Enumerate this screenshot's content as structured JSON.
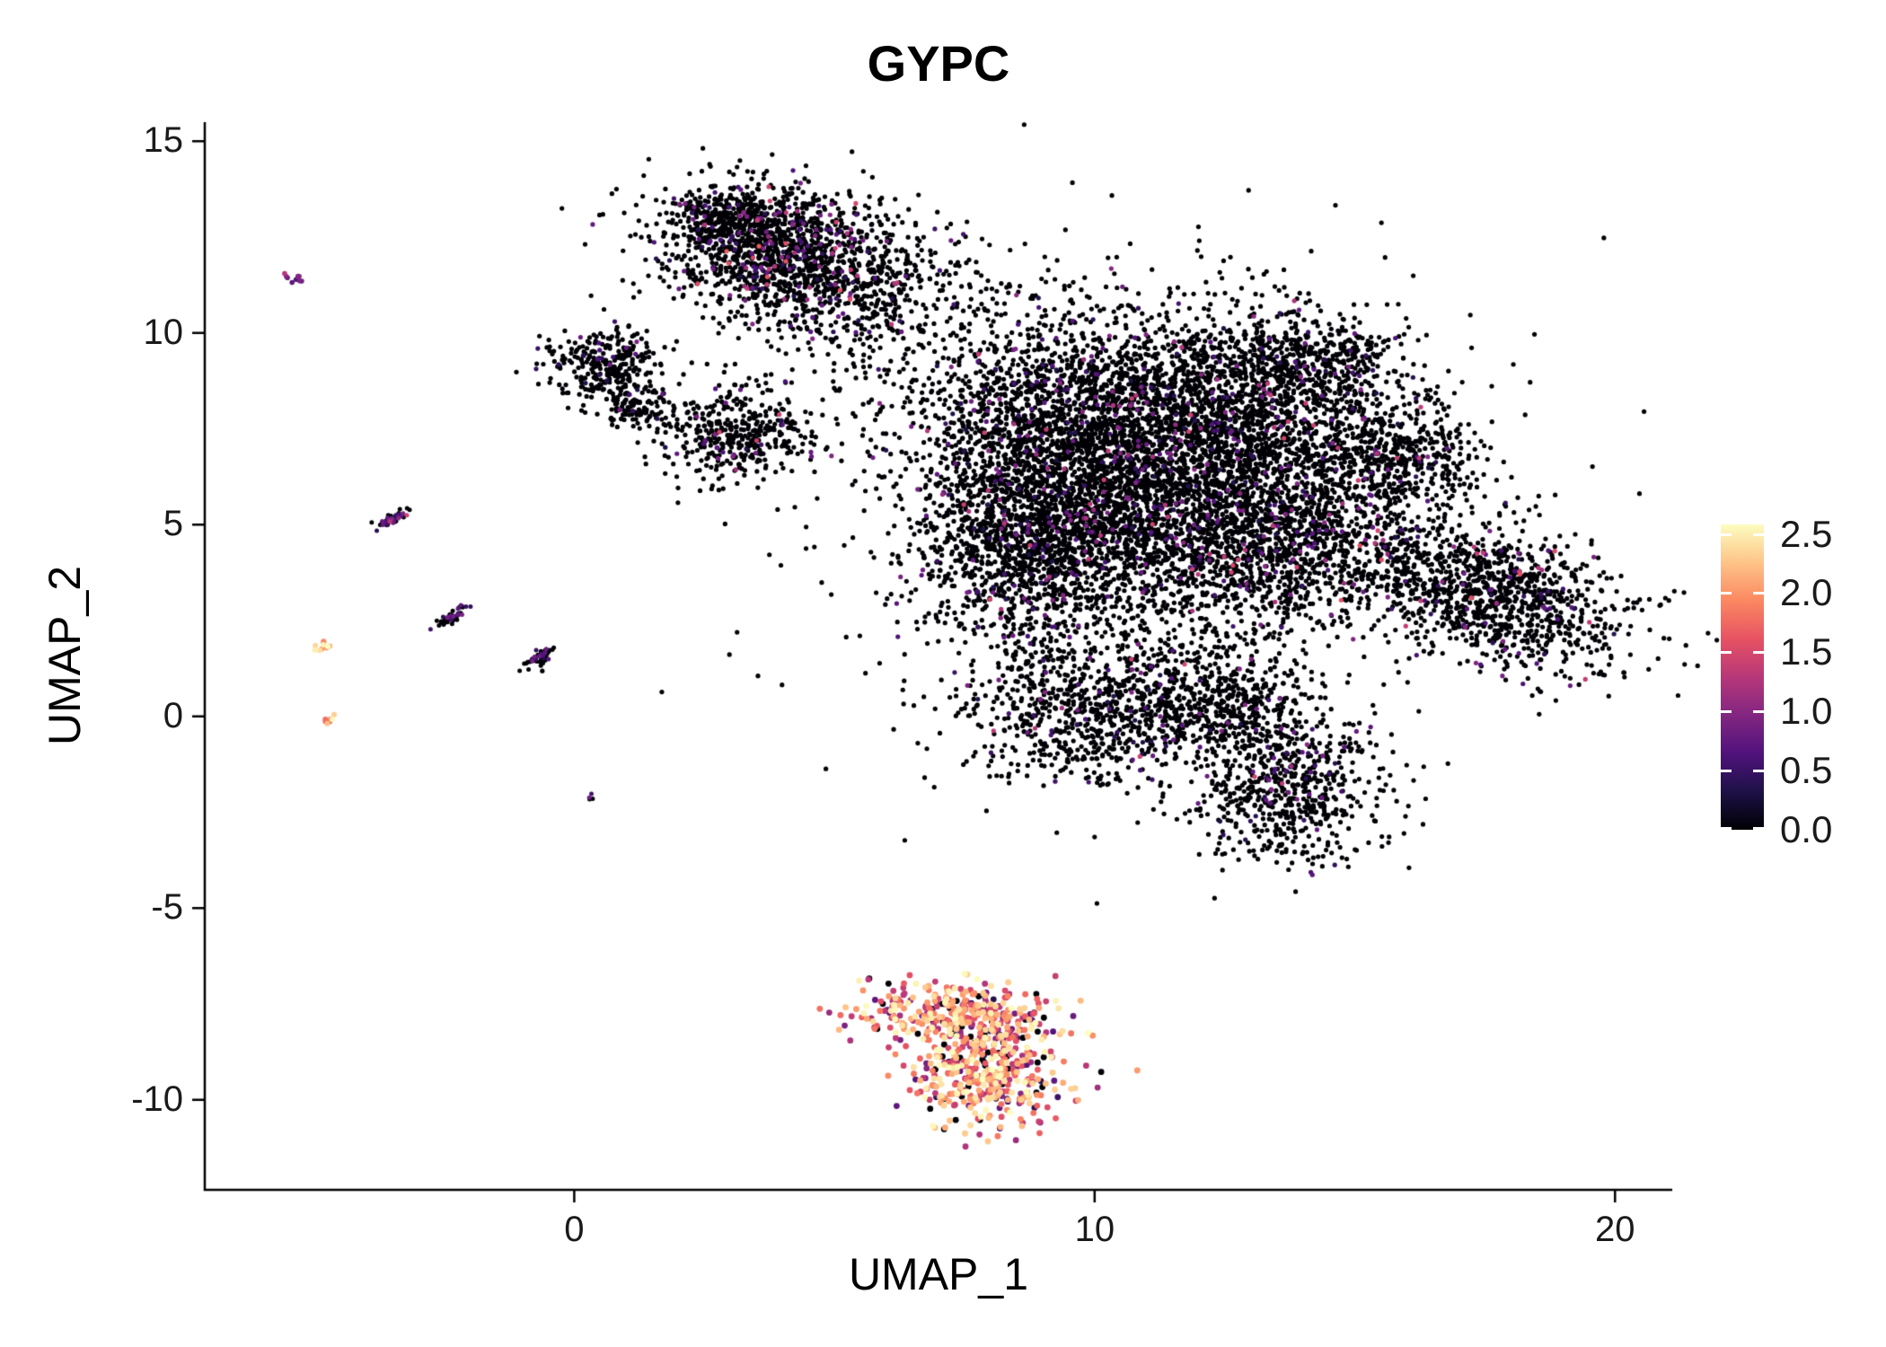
{
  "chart_data": {
    "type": "scatter",
    "title": "GYPC",
    "xlabel": "UMAP_1",
    "ylabel": "UMAP_2",
    "x_ticks": [
      0,
      10,
      20
    ],
    "y_ticks": [
      15,
      10,
      5,
      0,
      -5,
      -10
    ],
    "xlim": [
      -7.1,
      21.1
    ],
    "ylim": [
      -12.35,
      15.5
    ],
    "grid": false,
    "background": "#ffffff",
    "axis_color": "#000000",
    "legend": {
      "position": "right",
      "ticks": [
        "2.5",
        "2.0",
        "1.5",
        "1.0",
        "0.5",
        "0.0"
      ],
      "tick_values": [
        2.5,
        2.0,
        1.5,
        1.0,
        0.5,
        0.0
      ],
      "min": 0,
      "max": 2.58,
      "colormap": "magma",
      "colormap_stops": [
        {
          "t": 0.0,
          "color": "#000004"
        },
        {
          "t": 0.125,
          "color": "#1d1147"
        },
        {
          "t": 0.25,
          "color": "#51127c"
        },
        {
          "t": 0.375,
          "color": "#822681"
        },
        {
          "t": 0.5,
          "color": "#b73779"
        },
        {
          "t": 0.625,
          "color": "#e75263"
        },
        {
          "t": 0.75,
          "color": "#fb8861"
        },
        {
          "t": 0.875,
          "color": "#fec488"
        },
        {
          "t": 1.0,
          "color": "#fcfdbf"
        }
      ]
    },
    "point_radius_px": 2.6,
    "seed": 42,
    "clusters": [
      {
        "name": "topleft-main",
        "cx": 4.0,
        "cy": 12.1,
        "sx": 1.25,
        "sy": 0.85,
        "rot": -15,
        "n": 1500,
        "values": [
          {
            "frac": 0.88,
            "min": 0,
            "max": 0
          },
          {
            "frac": 0.09,
            "min": 0.3,
            "max": 1.0
          },
          {
            "frac": 0.03,
            "min": 1.0,
            "max": 1.7
          }
        ]
      },
      {
        "name": "topleft-spur",
        "cx": 2.9,
        "cy": 13.1,
        "sx": 0.5,
        "sy": 0.3,
        "rot": 0,
        "n": 150,
        "values": [
          {
            "frac": 0.9,
            "min": 0,
            "max": 0
          },
          {
            "frac": 0.08,
            "min": 0.3,
            "max": 1.0
          },
          {
            "frac": 0.02,
            "min": 1.0,
            "max": 1.5
          }
        ]
      },
      {
        "name": "left-island",
        "cx": 0.6,
        "cy": 9.2,
        "sx": 0.55,
        "sy": 0.45,
        "rot": 0,
        "n": 300,
        "values": [
          {
            "frac": 0.95,
            "min": 0,
            "max": 0
          },
          {
            "frac": 0.05,
            "min": 0.3,
            "max": 1.0
          }
        ]
      },
      {
        "name": "left-island-low",
        "cx": 1.15,
        "cy": 8.05,
        "sx": 0.3,
        "sy": 0.3,
        "rot": 0,
        "n": 100,
        "values": [
          {
            "frac": 0.95,
            "min": 0,
            "max": 0
          },
          {
            "frac": 0.05,
            "min": 0.3,
            "max": 1.0
          }
        ]
      },
      {
        "name": "mid-island",
        "cx": 3.1,
        "cy": 7.4,
        "sx": 0.75,
        "sy": 0.6,
        "rot": 10,
        "n": 420,
        "values": [
          {
            "frac": 0.94,
            "min": 0,
            "max": 0
          },
          {
            "frac": 0.05,
            "min": 0.3,
            "max": 1.0
          },
          {
            "frac": 0.01,
            "min": 1.0,
            "max": 1.5
          }
        ]
      },
      {
        "name": "bridge-scatter",
        "cx": 5.9,
        "cy": 10.6,
        "sx": 1.3,
        "sy": 1.1,
        "rot": 0,
        "n": 280,
        "values": [
          {
            "frac": 0.95,
            "min": 0,
            "max": 0
          },
          {
            "frac": 0.05,
            "min": 0.3,
            "max": 1.0
          }
        ]
      },
      {
        "name": "main-a",
        "cx": 9.4,
        "cy": 7.6,
        "sx": 1.5,
        "sy": 1.5,
        "rot": 0,
        "n": 1800,
        "values": [
          {
            "frac": 0.93,
            "min": 0,
            "max": 0
          },
          {
            "frac": 0.06,
            "min": 0.3,
            "max": 1.0
          },
          {
            "frac": 0.01,
            "min": 1.0,
            "max": 1.5
          }
        ]
      },
      {
        "name": "main-b",
        "cx": 12.3,
        "cy": 7.8,
        "sx": 1.6,
        "sy": 1.4,
        "rot": 0,
        "n": 1900,
        "values": [
          {
            "frac": 0.93,
            "min": 0,
            "max": 0
          },
          {
            "frac": 0.06,
            "min": 0.3,
            "max": 1.0
          },
          {
            "frac": 0.01,
            "min": 1.0,
            "max": 1.5
          }
        ]
      },
      {
        "name": "main-c",
        "cx": 11.0,
        "cy": 5.0,
        "sx": 1.8,
        "sy": 1.35,
        "rot": 0,
        "n": 1700,
        "values": [
          {
            "frac": 0.93,
            "min": 0,
            "max": 0
          },
          {
            "frac": 0.06,
            "min": 0.3,
            "max": 1.0
          },
          {
            "frac": 0.01,
            "min": 1.0,
            "max": 1.5
          }
        ]
      },
      {
        "name": "main-d",
        "cx": 8.6,
        "cy": 4.4,
        "sx": 1.0,
        "sy": 1.2,
        "rot": 0,
        "n": 900,
        "values": [
          {
            "frac": 0.93,
            "min": 0,
            "max": 0
          },
          {
            "frac": 0.06,
            "min": 0.3,
            "max": 1.0
          },
          {
            "frac": 0.01,
            "min": 1.0,
            "max": 1.5
          }
        ]
      },
      {
        "name": "main-e",
        "cx": 13.8,
        "cy": 4.6,
        "sx": 1.2,
        "sy": 1.2,
        "rot": 0,
        "n": 900,
        "values": [
          {
            "frac": 0.93,
            "min": 0,
            "max": 0
          },
          {
            "frac": 0.06,
            "min": 0.3,
            "max": 1.0
          },
          {
            "frac": 0.01,
            "min": 1.0,
            "max": 1.5
          }
        ]
      },
      {
        "name": "right-arm",
        "cx": 15.6,
        "cy": 6.9,
        "sx": 0.95,
        "sy": 0.8,
        "rot": -20,
        "n": 550,
        "values": [
          {
            "frac": 0.93,
            "min": 0,
            "max": 0
          },
          {
            "frac": 0.06,
            "min": 0.3,
            "max": 1.0
          },
          {
            "frac": 0.01,
            "min": 1.0,
            "max": 1.5
          }
        ]
      },
      {
        "name": "top-right-bump",
        "cx": 14.2,
        "cy": 9.3,
        "sx": 0.9,
        "sy": 0.55,
        "rot": 0,
        "n": 330,
        "values": [
          {
            "frac": 0.95,
            "min": 0,
            "max": 0
          },
          {
            "frac": 0.05,
            "min": 0.3,
            "max": 1.0
          }
        ]
      },
      {
        "name": "right-wing",
        "cx": 17.6,
        "cy": 3.2,
        "sx": 1.5,
        "sy": 0.8,
        "rot": -28,
        "n": 1150,
        "values": [
          {
            "frac": 0.92,
            "min": 0,
            "max": 0
          },
          {
            "frac": 0.06,
            "min": 0.3,
            "max": 1.0
          },
          {
            "frac": 0.02,
            "min": 1.0,
            "max": 1.6
          }
        ]
      },
      {
        "name": "lower-mid",
        "cx": 10.2,
        "cy": 0.3,
        "sx": 1.35,
        "sy": 1.0,
        "rot": 0,
        "n": 950,
        "values": [
          {
            "frac": 0.94,
            "min": 0,
            "max": 0
          },
          {
            "frac": 0.05,
            "min": 0.3,
            "max": 1.0
          },
          {
            "frac": 0.01,
            "min": 1.0,
            "max": 1.5
          }
        ]
      },
      {
        "name": "lower-neck",
        "cx": 12.6,
        "cy": 0.3,
        "sx": 0.8,
        "sy": 0.7,
        "rot": 0,
        "n": 350,
        "values": [
          {
            "frac": 0.94,
            "min": 0,
            "max": 0
          },
          {
            "frac": 0.06,
            "min": 0.3,
            "max": 1.0
          }
        ]
      },
      {
        "name": "bottom-lobe",
        "cx": 13.7,
        "cy": -1.9,
        "sx": 0.9,
        "sy": 0.95,
        "rot": 20,
        "n": 650,
        "values": [
          {
            "frac": 0.93,
            "min": 0,
            "max": 0
          },
          {
            "frac": 0.06,
            "min": 0.3,
            "max": 1.0
          },
          {
            "frac": 0.01,
            "min": 1.0,
            "max": 1.5
          }
        ]
      },
      {
        "name": "sparse-noise",
        "cx": 11.2,
        "cy": 5.2,
        "sx": 3.6,
        "sy": 3.4,
        "rot": 0,
        "n": 650,
        "values": [
          {
            "frac": 0.95,
            "min": 0,
            "max": 0
          },
          {
            "frac": 0.05,
            "min": 0.3,
            "max": 1.0
          }
        ]
      },
      {
        "name": "erythroid-top",
        "cx": 7.3,
        "cy": -7.8,
        "sx": 0.95,
        "sy": 0.45,
        "rot": -5,
        "n": 340,
        "r": 3.4,
        "values": [
          {
            "frac": 0.1,
            "min": 0,
            "max": 0
          },
          {
            "frac": 0.13,
            "min": 0.3,
            "max": 1.2
          },
          {
            "frac": 0.42,
            "min": 1.2,
            "max": 2.0
          },
          {
            "frac": 0.35,
            "min": 2.0,
            "max": 2.6
          }
        ]
      },
      {
        "name": "erythroid-bot",
        "cx": 8.0,
        "cy": -9.3,
        "sx": 0.75,
        "sy": 0.7,
        "rot": 10,
        "n": 400,
        "r": 3.4,
        "values": [
          {
            "frac": 0.08,
            "min": 0,
            "max": 0
          },
          {
            "frac": 0.12,
            "min": 0.3,
            "max": 1.2
          },
          {
            "frac": 0.4,
            "min": 1.2,
            "max": 2.0
          },
          {
            "frac": 0.4,
            "min": 2.0,
            "max": 2.6
          }
        ]
      },
      {
        "name": "sat-purple",
        "cx": -5.35,
        "cy": 11.4,
        "sx": 0.1,
        "sy": 0.08,
        "rot": 0,
        "n": 10,
        "r": 2.8,
        "values": [
          {
            "frac": 1.0,
            "min": 0.6,
            "max": 1.3
          }
        ]
      },
      {
        "name": "sat-streak-a",
        "cx": -3.5,
        "cy": 5.15,
        "sx": 0.22,
        "sy": 0.06,
        "rot": 38,
        "n": 55,
        "r": 2.5,
        "values": [
          {
            "frac": 0.55,
            "min": 0,
            "max": 0
          },
          {
            "frac": 0.4,
            "min": 0.3,
            "max": 1.0
          },
          {
            "frac": 0.05,
            "min": 1.0,
            "max": 1.5
          }
        ]
      },
      {
        "name": "sat-streak-b",
        "cx": -2.35,
        "cy": 2.6,
        "sx": 0.2,
        "sy": 0.06,
        "rot": 38,
        "n": 50,
        "r": 2.5,
        "values": [
          {
            "frac": 0.7,
            "min": 0,
            "max": 0
          },
          {
            "frac": 0.3,
            "min": 0.3,
            "max": 0.9
          }
        ]
      },
      {
        "name": "sat-streak-c",
        "cx": -0.7,
        "cy": 1.5,
        "sx": 0.2,
        "sy": 0.06,
        "rot": 38,
        "n": 50,
        "r": 2.5,
        "values": [
          {
            "frac": 0.75,
            "min": 0,
            "max": 0
          },
          {
            "frac": 0.25,
            "min": 0.3,
            "max": 0.9
          }
        ]
      },
      {
        "name": "sat-orange-a",
        "cx": -4.85,
        "cy": 1.8,
        "sx": 0.1,
        "sy": 0.07,
        "rot": 30,
        "n": 10,
        "r": 3.0,
        "values": [
          {
            "frac": 0.5,
            "min": 1.6,
            "max": 2.2
          },
          {
            "frac": 0.5,
            "min": 2.2,
            "max": 2.6
          }
        ]
      },
      {
        "name": "sat-orange-b",
        "cx": -4.75,
        "cy": -0.05,
        "sx": 0.09,
        "sy": 0.07,
        "rot": 0,
        "n": 8,
        "r": 3.0,
        "values": [
          {
            "frac": 0.6,
            "min": 1.5,
            "max": 2.2
          },
          {
            "frac": 0.4,
            "min": 2.2,
            "max": 2.6
          }
        ]
      },
      {
        "name": "sat-dot",
        "cx": 0.35,
        "cy": -2.1,
        "sx": 0.06,
        "sy": 0.05,
        "rot": 0,
        "n": 4,
        "r": 2.5,
        "values": [
          {
            "frac": 0.5,
            "min": 0,
            "max": 0
          },
          {
            "frac": 0.5,
            "min": 0.5,
            "max": 0.9
          }
        ]
      }
    ]
  }
}
